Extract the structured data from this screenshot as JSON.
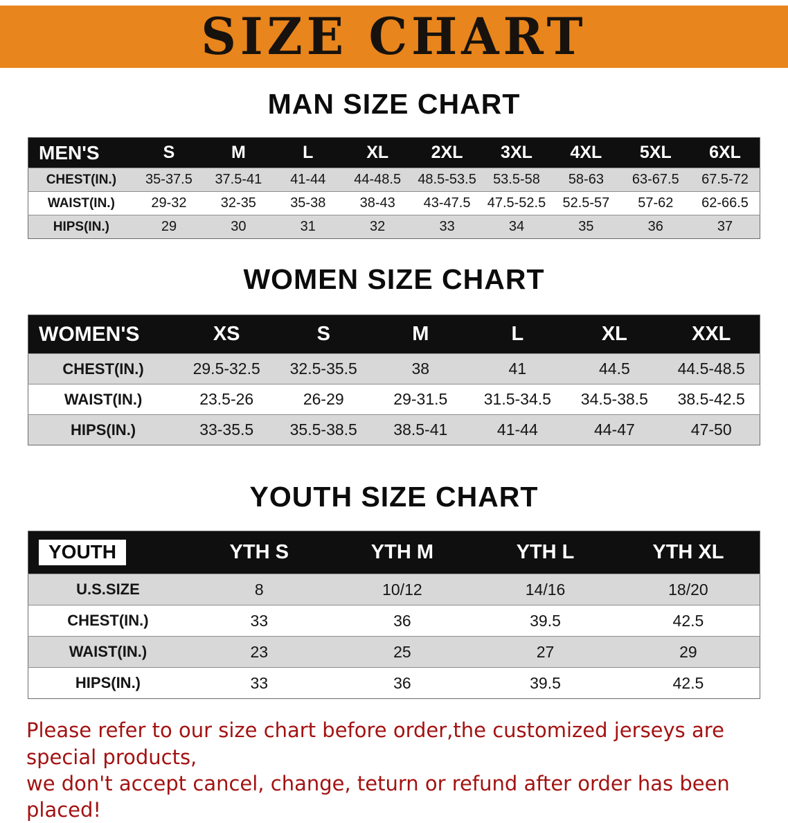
{
  "banner": {
    "title": "SIZE CHART"
  },
  "colors": {
    "banner_bg": "#E8851C",
    "banner_text": "#17120D",
    "header_row_bg": "#0F0F0F",
    "row_shade": "#D8D8D8",
    "footer_text": "#A31212"
  },
  "chart_data": [
    {
      "type": "table",
      "title": "MAN SIZE CHART",
      "columns": [
        "MEN'S",
        "S",
        "M",
        "L",
        "XL",
        "2XL",
        "3XL",
        "4XL",
        "5XL",
        "6XL"
      ],
      "rows": [
        [
          "CHEST(IN.)",
          "35-37.5",
          "37.5-41",
          "41-44",
          "44-48.5",
          "48.5-53.5",
          "53.5-58",
          "58-63",
          "63-67.5",
          "67.5-72"
        ],
        [
          "WAIST(IN.)",
          "29-32",
          "32-35",
          "35-38",
          "38-43",
          "43-47.5",
          "47.5-52.5",
          "52.5-57",
          "57-62",
          "62-66.5"
        ],
        [
          "HIPS(IN.)",
          "29",
          "30",
          "31",
          "32",
          "33",
          "34",
          "35",
          "36",
          "37"
        ]
      ]
    },
    {
      "type": "table",
      "title": "WOMEN SIZE CHART",
      "columns": [
        "WOMEN'S",
        "XS",
        "S",
        "M",
        "L",
        "XL",
        "XXL"
      ],
      "rows": [
        [
          "CHEST(IN.)",
          "29.5-32.5",
          "32.5-35.5",
          "38",
          "41",
          "44.5",
          "44.5-48.5"
        ],
        [
          "WAIST(IN.)",
          "23.5-26",
          "26-29",
          "29-31.5",
          "31.5-34.5",
          "34.5-38.5",
          "38.5-42.5"
        ],
        [
          "HIPS(IN.)",
          "33-35.5",
          "35.5-38.5",
          "38.5-41",
          "41-44",
          "44-47",
          "47-50"
        ]
      ]
    },
    {
      "type": "table",
      "title": "YOUTH SIZE CHART",
      "label_boxed": true,
      "columns": [
        "YOUTH",
        "YTH S",
        "YTH M",
        "YTH L",
        "YTH XL"
      ],
      "rows": [
        [
          "U.S.SIZE",
          "8",
          "10/12",
          "14/16",
          "18/20"
        ],
        [
          "CHEST(IN.)",
          "33",
          "36",
          "39.5",
          "42.5"
        ],
        [
          "WAIST(IN.)",
          "23",
          "25",
          "27",
          "29"
        ],
        [
          "HIPS(IN.)",
          "33",
          "36",
          "39.5",
          "42.5"
        ]
      ]
    }
  ],
  "footer": {
    "line1": "Please refer to our size chart before order,the customized jerseys are special products,",
    "line2": "we don't accept cancel, change, teturn or refund after order has been placed!"
  }
}
